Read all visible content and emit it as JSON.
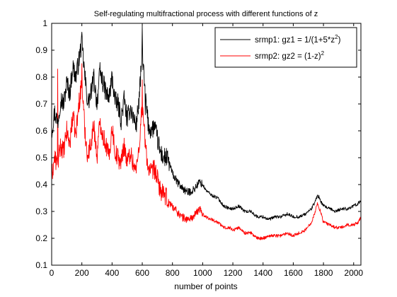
{
  "chart_data": {
    "type": "line",
    "title": "Self-regulating multifractional process with different functions of z",
    "xlabel": "number of points",
    "ylabel": "",
    "xlim": [
      0,
      2048
    ],
    "ylim": [
      0.1,
      1.0
    ],
    "x_ticks": [
      0,
      200,
      400,
      600,
      800,
      1000,
      1200,
      1400,
      1600,
      1800,
      2000
    ],
    "y_ticks": [
      0.1,
      0.2,
      0.3,
      0.4,
      0.5,
      0.6,
      0.7,
      0.8,
      0.9,
      1
    ],
    "grid": false,
    "legend_position": "top-right",
    "series": [
      {
        "name_main": "srmp1: gz1 = 1/(1+5*z",
        "name_sup": "2",
        "name_tail": ")",
        "color": "#000000",
        "x": [
          0,
          20,
          40,
          60,
          80,
          100,
          120,
          140,
          160,
          180,
          200,
          220,
          240,
          260,
          280,
          300,
          320,
          340,
          360,
          380,
          400,
          420,
          440,
          460,
          480,
          500,
          520,
          540,
          560,
          580,
          600,
          620,
          640,
          660,
          680,
          700,
          720,
          740,
          760,
          780,
          800,
          830,
          860,
          900,
          940,
          980,
          1000,
          1020,
          1060,
          1100,
          1140,
          1180,
          1200,
          1240,
          1280,
          1320,
          1360,
          1400,
          1440,
          1480,
          1520,
          1560,
          1600,
          1640,
          1680,
          1720,
          1740,
          1760,
          1780,
          1800,
          1840,
          1880,
          1920,
          1960,
          2000,
          2030,
          2048
        ],
        "y": [
          0.6,
          0.67,
          0.63,
          0.72,
          0.7,
          0.78,
          0.74,
          0.84,
          0.8,
          0.86,
          0.93,
          0.8,
          0.7,
          0.74,
          0.8,
          0.7,
          0.82,
          0.78,
          0.74,
          0.72,
          0.8,
          0.71,
          0.7,
          0.64,
          0.72,
          0.64,
          0.69,
          0.65,
          0.62,
          0.72,
          0.89,
          0.73,
          0.62,
          0.6,
          0.62,
          0.57,
          0.52,
          0.5,
          0.5,
          0.48,
          0.44,
          0.41,
          0.39,
          0.37,
          0.38,
          0.41,
          0.4,
          0.38,
          0.36,
          0.35,
          0.32,
          0.31,
          0.31,
          0.32,
          0.3,
          0.3,
          0.28,
          0.28,
          0.27,
          0.28,
          0.28,
          0.29,
          0.28,
          0.28,
          0.29,
          0.31,
          0.33,
          0.36,
          0.34,
          0.32,
          0.31,
          0.3,
          0.31,
          0.31,
          0.32,
          0.33,
          0.34
        ],
        "spikes": [
          [
            600,
            0.99
          ],
          [
            620,
            0.66
          ],
          [
            1770,
            0.36
          ]
        ]
      },
      {
        "name_main": "srmp2: gz2 = (1-z)",
        "name_sup": "2",
        "name_tail": "",
        "color": "#ff0000",
        "x": [
          0,
          20,
          40,
          60,
          80,
          100,
          120,
          140,
          160,
          180,
          200,
          220,
          240,
          260,
          280,
          300,
          320,
          340,
          360,
          380,
          400,
          420,
          440,
          460,
          480,
          500,
          520,
          540,
          560,
          580,
          600,
          620,
          640,
          660,
          680,
          700,
          720,
          740,
          760,
          780,
          800,
          830,
          860,
          900,
          940,
          980,
          1000,
          1020,
          1060,
          1100,
          1140,
          1180,
          1200,
          1240,
          1280,
          1320,
          1360,
          1400,
          1440,
          1480,
          1520,
          1560,
          1600,
          1640,
          1680,
          1720,
          1740,
          1760,
          1780,
          1800,
          1840,
          1880,
          1920,
          1960,
          2000,
          2030,
          2048
        ],
        "y": [
          0.43,
          0.5,
          0.47,
          0.55,
          0.52,
          0.6,
          0.55,
          0.66,
          0.58,
          0.7,
          0.78,
          0.6,
          0.5,
          0.56,
          0.62,
          0.5,
          0.64,
          0.58,
          0.55,
          0.5,
          0.62,
          0.52,
          0.5,
          0.48,
          0.55,
          0.48,
          0.52,
          0.48,
          0.45,
          0.55,
          0.7,
          0.55,
          0.46,
          0.44,
          0.46,
          0.42,
          0.38,
          0.36,
          0.35,
          0.33,
          0.32,
          0.3,
          0.28,
          0.27,
          0.28,
          0.31,
          0.29,
          0.28,
          0.27,
          0.26,
          0.24,
          0.24,
          0.23,
          0.24,
          0.22,
          0.22,
          0.2,
          0.2,
          0.21,
          0.21,
          0.21,
          0.22,
          0.21,
          0.22,
          0.23,
          0.26,
          0.29,
          0.33,
          0.3,
          0.26,
          0.25,
          0.24,
          0.24,
          0.25,
          0.25,
          0.26,
          0.28
        ],
        "spikes": [
          [
            40,
            0.83
          ],
          [
            200,
            0.85
          ],
          [
            600,
            0.79
          ]
        ]
      }
    ]
  }
}
